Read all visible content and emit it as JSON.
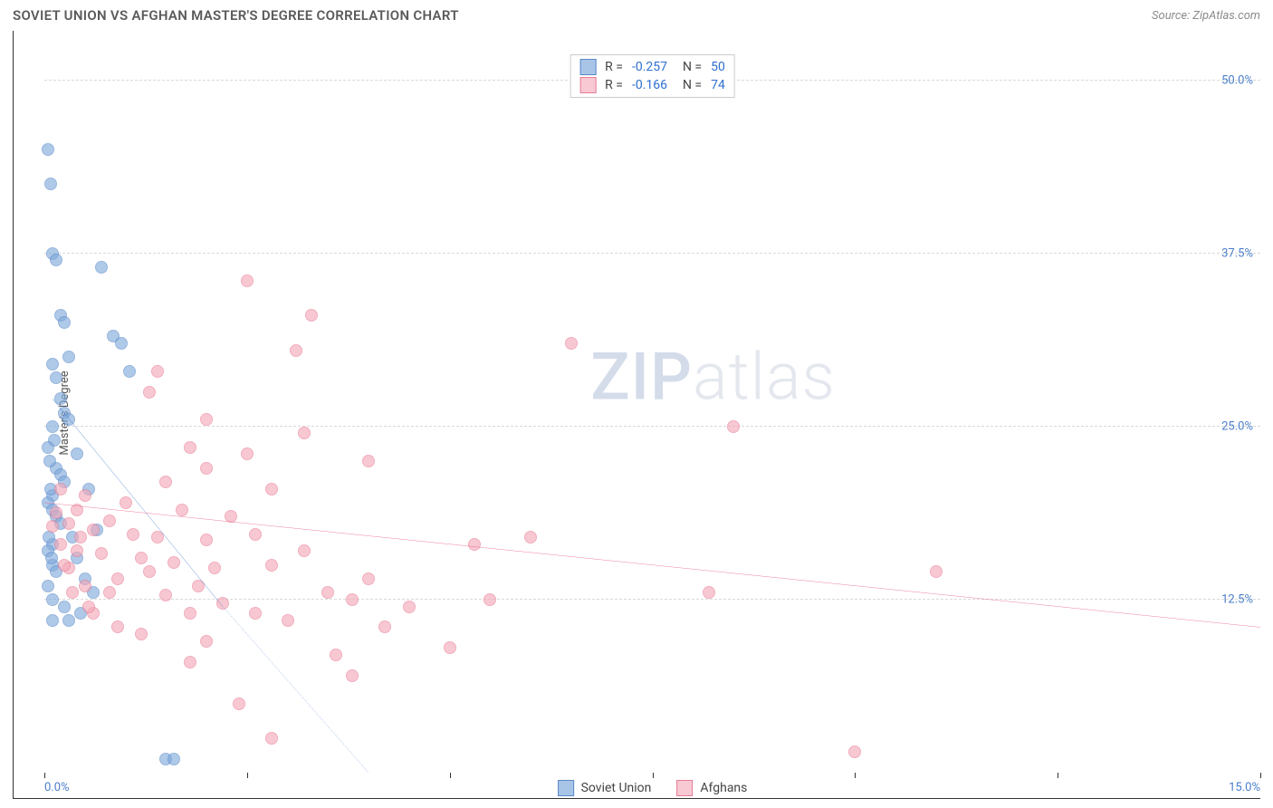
{
  "title": "SOVIET UNION VS AFGHAN MASTER'S DEGREE CORRELATION CHART",
  "source_label": "Source: ZipAtlas.com",
  "watermark_zip": "ZIP",
  "watermark_atlas": "atlas",
  "chart": {
    "type": "scatter",
    "ylabel": "Master's Degree",
    "xlim": [
      0,
      15
    ],
    "ylim": [
      0,
      52
    ],
    "y_gridlines": [
      12.5,
      25.0,
      37.5,
      50.0
    ],
    "y_tick_labels": [
      "12.5%",
      "25.0%",
      "37.5%",
      "50.0%"
    ],
    "x_ticks": [
      0,
      2.5,
      5.0,
      7.5,
      10.0,
      12.5,
      15.0
    ],
    "x_tick_labels_shown": {
      "0": "0.0%",
      "15": "15.0%"
    },
    "grid_color": "#d9d9d9",
    "axis_color": "#333333",
    "background_color": "#ffffff",
    "tick_label_color": "#4a7ec9",
    "marker_radius": 7,
    "marker_stroke_width": 1.4,
    "marker_fill_opacity": 0.32,
    "series": [
      {
        "name": "Soviet Union",
        "color": "#7fa9db",
        "stroke": "#5a8ac9",
        "line_color": "#1f5fc0",
        "R": "-0.257",
        "N": "50",
        "regression": {
          "x1": 0.1,
          "y1": 27.0,
          "x2": 2.2,
          "y2": 12.0
        },
        "regression_ext": {
          "x1": 2.2,
          "y1": 12.0,
          "x2": 4.0,
          "y2": 0.0,
          "dash": true
        },
        "points": [
          [
            0.05,
            45.0
          ],
          [
            0.08,
            42.5
          ],
          [
            0.1,
            37.5
          ],
          [
            0.15,
            37.0
          ],
          [
            0.7,
            36.5
          ],
          [
            0.2,
            33.0
          ],
          [
            0.25,
            32.5
          ],
          [
            0.85,
            31.5
          ],
          [
            0.95,
            31.0
          ],
          [
            0.3,
            30.0
          ],
          [
            1.05,
            29.0
          ],
          [
            0.1,
            29.5
          ],
          [
            0.15,
            28.5
          ],
          [
            0.2,
            27.0
          ],
          [
            0.25,
            26.0
          ],
          [
            0.3,
            25.5
          ],
          [
            0.1,
            25.0
          ],
          [
            0.12,
            24.0
          ],
          [
            0.4,
            23.0
          ],
          [
            0.15,
            22.0
          ],
          [
            0.2,
            21.5
          ],
          [
            0.25,
            21.0
          ],
          [
            0.55,
            20.5
          ],
          [
            0.1,
            20.0
          ],
          [
            0.05,
            19.5
          ],
          [
            0.1,
            19.0
          ],
          [
            0.15,
            18.5
          ],
          [
            0.2,
            18.0
          ],
          [
            0.65,
            17.5
          ],
          [
            0.35,
            17.0
          ],
          [
            0.1,
            16.5
          ],
          [
            0.05,
            16.0
          ],
          [
            0.4,
            15.5
          ],
          [
            0.1,
            15.0
          ],
          [
            0.15,
            14.5
          ],
          [
            0.5,
            14.0
          ],
          [
            0.05,
            13.5
          ],
          [
            0.6,
            13.0
          ],
          [
            0.1,
            12.5
          ],
          [
            0.25,
            12.0
          ],
          [
            0.45,
            11.5
          ],
          [
            0.3,
            11.0
          ],
          [
            0.1,
            11.0
          ],
          [
            1.5,
            1.0
          ],
          [
            1.6,
            1.0
          ],
          [
            0.05,
            23.5
          ],
          [
            0.07,
            22.5
          ],
          [
            0.08,
            20.5
          ],
          [
            0.06,
            17.0
          ],
          [
            0.09,
            15.5
          ]
        ]
      },
      {
        "name": "Afghans",
        "color": "#f4a8b8",
        "stroke": "#e87c96",
        "line_color": "#e74b7a",
        "R": "-0.166",
        "N": "74",
        "regression": {
          "x1": 0.0,
          "y1": 19.5,
          "x2": 15.0,
          "y2": 10.5
        },
        "points": [
          [
            2.5,
            35.5
          ],
          [
            3.3,
            33.0
          ],
          [
            3.1,
            30.5
          ],
          [
            1.4,
            29.0
          ],
          [
            1.3,
            27.5
          ],
          [
            6.5,
            31.0
          ],
          [
            2.0,
            25.5
          ],
          [
            3.2,
            24.5
          ],
          [
            1.8,
            23.5
          ],
          [
            2.5,
            23.0
          ],
          [
            8.5,
            25.0
          ],
          [
            2.0,
            22.0
          ],
          [
            4.0,
            22.5
          ],
          [
            1.5,
            21.0
          ],
          [
            2.8,
            20.5
          ],
          [
            0.5,
            20.0
          ],
          [
            1.0,
            19.5
          ],
          [
            1.7,
            19.0
          ],
          [
            2.3,
            18.5
          ],
          [
            0.8,
            18.2
          ],
          [
            0.3,
            18.0
          ],
          [
            0.6,
            17.5
          ],
          [
            1.1,
            17.2
          ],
          [
            1.4,
            17.0
          ],
          [
            2.0,
            16.8
          ],
          [
            2.6,
            17.2
          ],
          [
            0.2,
            16.5
          ],
          [
            0.4,
            16.0
          ],
          [
            0.7,
            15.8
          ],
          [
            1.2,
            15.5
          ],
          [
            1.6,
            15.2
          ],
          [
            2.1,
            14.8
          ],
          [
            5.3,
            16.5
          ],
          [
            4.5,
            12.0
          ],
          [
            3.5,
            13.0
          ],
          [
            0.9,
            14.0
          ],
          [
            1.3,
            14.5
          ],
          [
            2.8,
            15.0
          ],
          [
            3.8,
            12.5
          ],
          [
            5.5,
            12.5
          ],
          [
            8.2,
            13.0
          ],
          [
            11.0,
            14.5
          ],
          [
            0.3,
            14.8
          ],
          [
            0.5,
            13.5
          ],
          [
            0.8,
            13.0
          ],
          [
            1.5,
            12.8
          ],
          [
            2.2,
            12.2
          ],
          [
            3.0,
            11.0
          ],
          [
            4.2,
            10.5
          ],
          [
            3.6,
            8.5
          ],
          [
            3.8,
            7.0
          ],
          [
            2.8,
            2.5
          ],
          [
            2.4,
            5.0
          ],
          [
            10.0,
            1.5
          ],
          [
            2.0,
            9.5
          ],
          [
            1.8,
            8.0
          ],
          [
            1.2,
            10.0
          ],
          [
            0.6,
            11.5
          ],
          [
            0.9,
            10.5
          ],
          [
            1.8,
            11.5
          ],
          [
            5.0,
            9.0
          ],
          [
            0.4,
            19.0
          ],
          [
            0.2,
            20.5
          ],
          [
            0.1,
            17.8
          ],
          [
            0.25,
            15.0
          ],
          [
            0.35,
            13.0
          ],
          [
            0.55,
            12.0
          ],
          [
            1.9,
            13.5
          ],
          [
            2.6,
            11.5
          ],
          [
            3.2,
            16.0
          ],
          [
            4.0,
            14.0
          ],
          [
            6.0,
            17.0
          ],
          [
            0.15,
            18.8
          ],
          [
            0.45,
            17.0
          ]
        ]
      }
    ]
  },
  "legend_top": [
    {
      "swatch_color": "#a8c5e8",
      "swatch_border": "#5a8ac9",
      "R": "-0.257",
      "N": "50"
    },
    {
      "swatch_color": "#f8c8d3",
      "swatch_border": "#e87c96",
      "R": "-0.166",
      "N": "74"
    }
  ],
  "legend_bottom": [
    {
      "swatch_color": "#a8c5e8",
      "swatch_border": "#5a8ac9",
      "label": "Soviet Union"
    },
    {
      "swatch_color": "#f8c8d3",
      "swatch_border": "#e87c96",
      "label": "Afghans"
    }
  ]
}
